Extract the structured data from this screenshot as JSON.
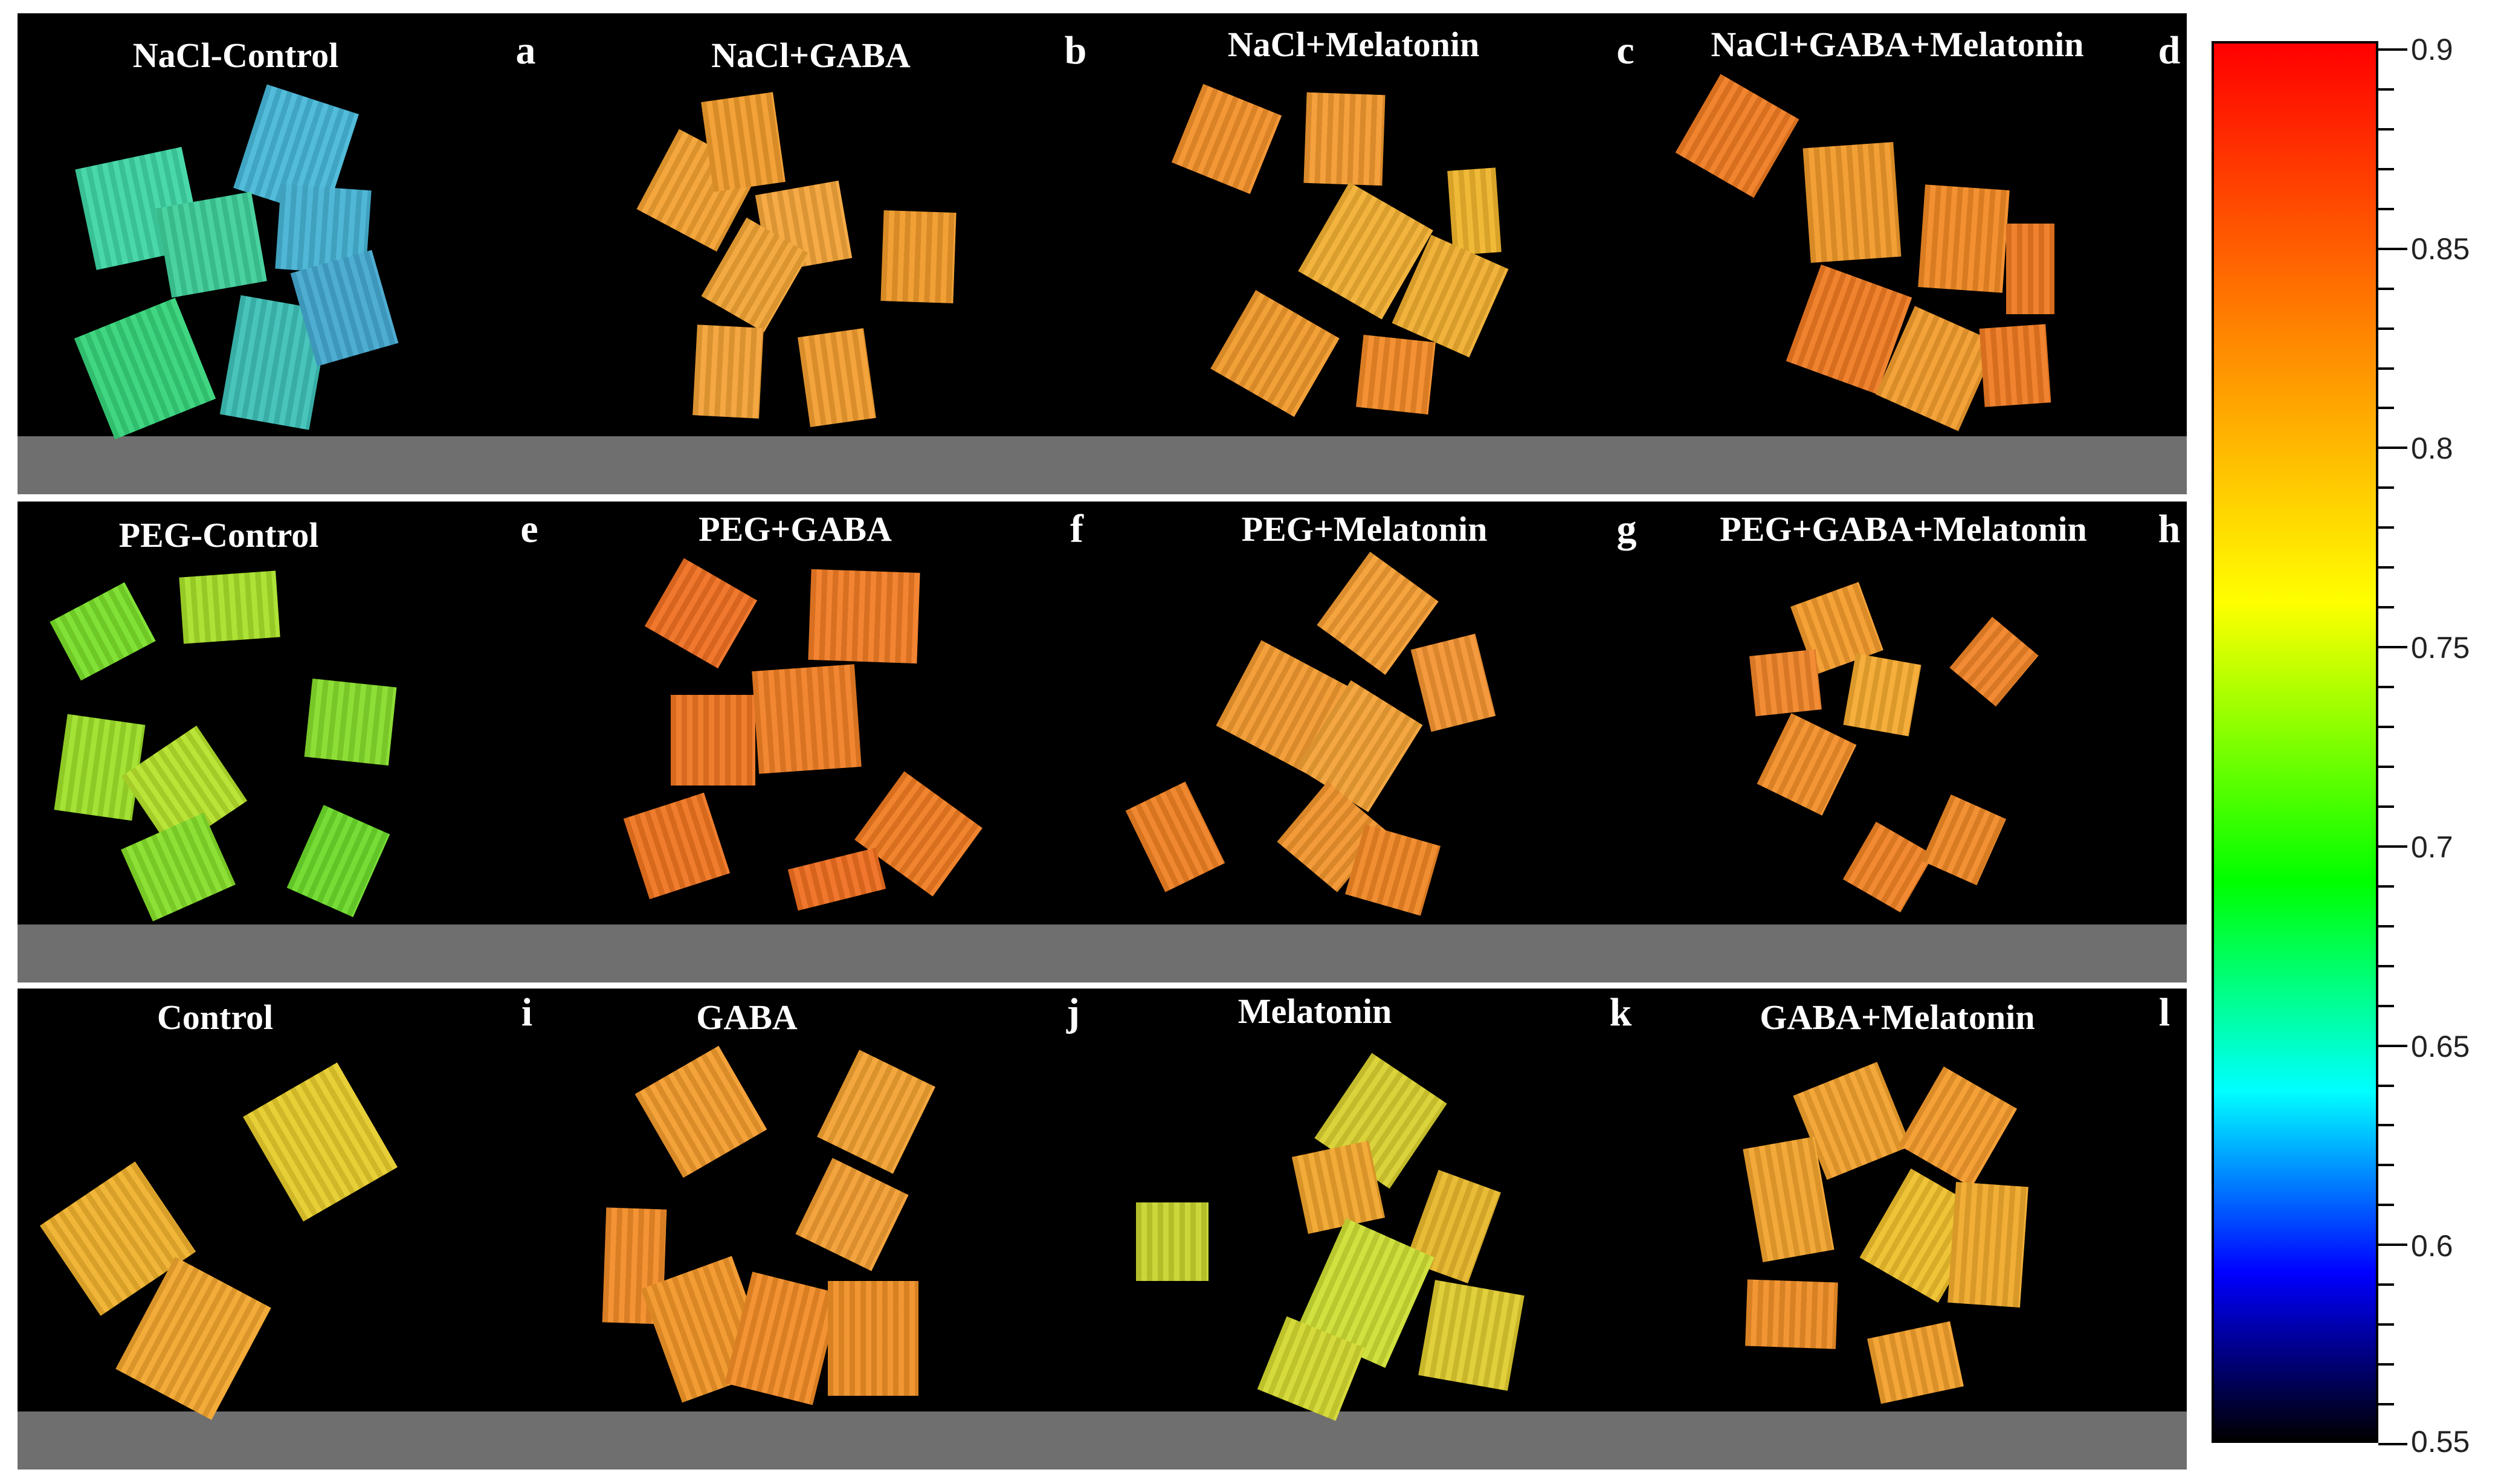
{
  "rows": [
    {
      "panels": [
        {
          "title": "NaCl-Control",
          "letter": "a"
        },
        {
          "title": "NaCl+GABA",
          "letter": "b"
        },
        {
          "title": "NaCl+Melatonin",
          "letter": "c"
        },
        {
          "title": "NaCl+GABA+Melatonin",
          "letter": "d"
        }
      ]
    },
    {
      "panels": [
        {
          "title": "PEG-Control",
          "letter": "e"
        },
        {
          "title": "PEG+GABA",
          "letter": "f"
        },
        {
          "title": "PEG+Melatonin",
          "letter": "g"
        },
        {
          "title": "PEG+GABA+Melatonin",
          "letter": "h"
        }
      ]
    },
    {
      "panels": [
        {
          "title": "Control",
          "letter": "i"
        },
        {
          "title": "GABA",
          "letter": "j"
        },
        {
          "title": "Melatonin",
          "letter": "k"
        },
        {
          "title": "GABA+Melatonin",
          "letter": "l"
        }
      ]
    }
  ],
  "colorbar": {
    "labels": [
      "0.9",
      "0.85",
      "0.8",
      "0.75",
      "0.7",
      "0.65",
      "0.6",
      "0.55"
    ],
    "colors": {
      "top": "#ff0000",
      "orange": "#ff8000",
      "yellow": "#ffff00",
      "green": "#00ff00",
      "cyan": "#00ffff",
      "blue": "#0000ff",
      "bottom": "#000000"
    }
  }
}
